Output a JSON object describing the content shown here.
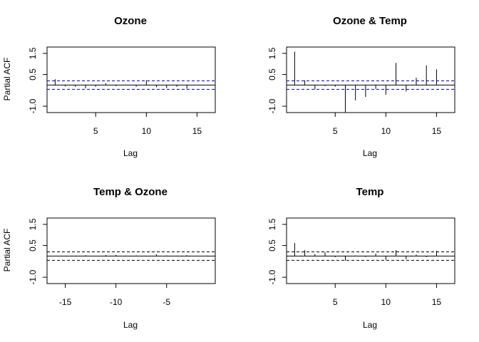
{
  "chart_data": [
    {
      "type": "bar",
      "title": "Ozone",
      "xlabel": "Lag",
      "ylabel": "Partial ACF",
      "xlim": [
        0.2,
        16.8
      ],
      "ylim": [
        -1.3,
        1.8
      ],
      "xticks": [
        5,
        10,
        15
      ],
      "yticks": [
        -1.0,
        0.5,
        1.5
      ],
      "ytick_labels": [
        "-1.0",
        "0.5",
        "1.5"
      ],
      "ci": 0.2,
      "ci_color": "#0000bb",
      "x": [
        1,
        2,
        3,
        4,
        5,
        6,
        7,
        8,
        9,
        10,
        11,
        12,
        13,
        14,
        15
      ],
      "values": [
        0.28,
        -0.06,
        -0.08,
        -0.15,
        -0.08,
        0.08,
        -0.05,
        0.03,
        -0.08,
        0.22,
        -0.1,
        -0.14,
        -0.08,
        -0.17,
        0.01
      ]
    },
    {
      "type": "bar",
      "title": "Ozone & Temp",
      "xlabel": "Lag",
      "ylabel": "",
      "xlim": [
        0.2,
        16.8
      ],
      "ylim": [
        -1.3,
        1.8
      ],
      "xticks": [
        5,
        10,
        15
      ],
      "yticks": [
        -1.0,
        0.5,
        1.5
      ],
      "ytick_labels": [
        "-1.0",
        "0.5",
        "1.5"
      ],
      "ci": 0.2,
      "ci_color": "#0000bb",
      "x": [
        1,
        2,
        3,
        4,
        5,
        6,
        7,
        8,
        9,
        10,
        11,
        12,
        13,
        14,
        15
      ],
      "values": [
        1.58,
        0.22,
        -0.2,
        -0.05,
        -0.08,
        -1.28,
        -0.72,
        -0.56,
        -0.18,
        -0.46,
        1.05,
        -0.3,
        0.35,
        0.93,
        0.75
      ]
    },
    {
      "type": "bar",
      "title": "Temp & Ozone",
      "xlabel": "Lag",
      "ylabel": "Partial ACF",
      "xlim": [
        -16.8,
        -0.2
      ],
      "ylim": [
        -1.3,
        1.8
      ],
      "xticks": [
        -15,
        -10,
        -5
      ],
      "yticks": [
        -1.0,
        0.5,
        1.5
      ],
      "ytick_labels": [
        "-1.0",
        "0.5",
        "1.5"
      ],
      "ci": 0.2,
      "ci_color": "#000000",
      "x": [
        -15,
        -14,
        -13,
        -12,
        -11,
        -10,
        -9,
        -8,
        -7,
        -6,
        -5,
        -4,
        -3,
        -2,
        -1
      ],
      "values": [
        0.0,
        0.02,
        0.04,
        -0.02,
        0.05,
        0.06,
        0.02,
        0.03,
        -0.02,
        0.08,
        0.03,
        0.02,
        0.04,
        0.01,
        0.02
      ]
    },
    {
      "type": "bar",
      "title": "Temp",
      "xlabel": "Lag",
      "ylabel": "",
      "xlim": [
        0.2,
        16.8
      ],
      "ylim": [
        -1.3,
        1.8
      ],
      "xticks": [
        5,
        10,
        15
      ],
      "yticks": [
        -1.0,
        0.5,
        1.5
      ],
      "ytick_labels": [
        "-1.0",
        "0.5",
        "1.5"
      ],
      "ci": 0.2,
      "ci_color": "#000000",
      "x": [
        1,
        2,
        3,
        4,
        5,
        6,
        7,
        8,
        9,
        10,
        11,
        12,
        13,
        14,
        15
      ],
      "values": [
        0.62,
        0.28,
        0.1,
        0.18,
        -0.05,
        -0.22,
        0.03,
        -0.04,
        0.12,
        -0.18,
        0.28,
        -0.15,
        0.07,
        -0.05,
        0.25
      ]
    }
  ]
}
